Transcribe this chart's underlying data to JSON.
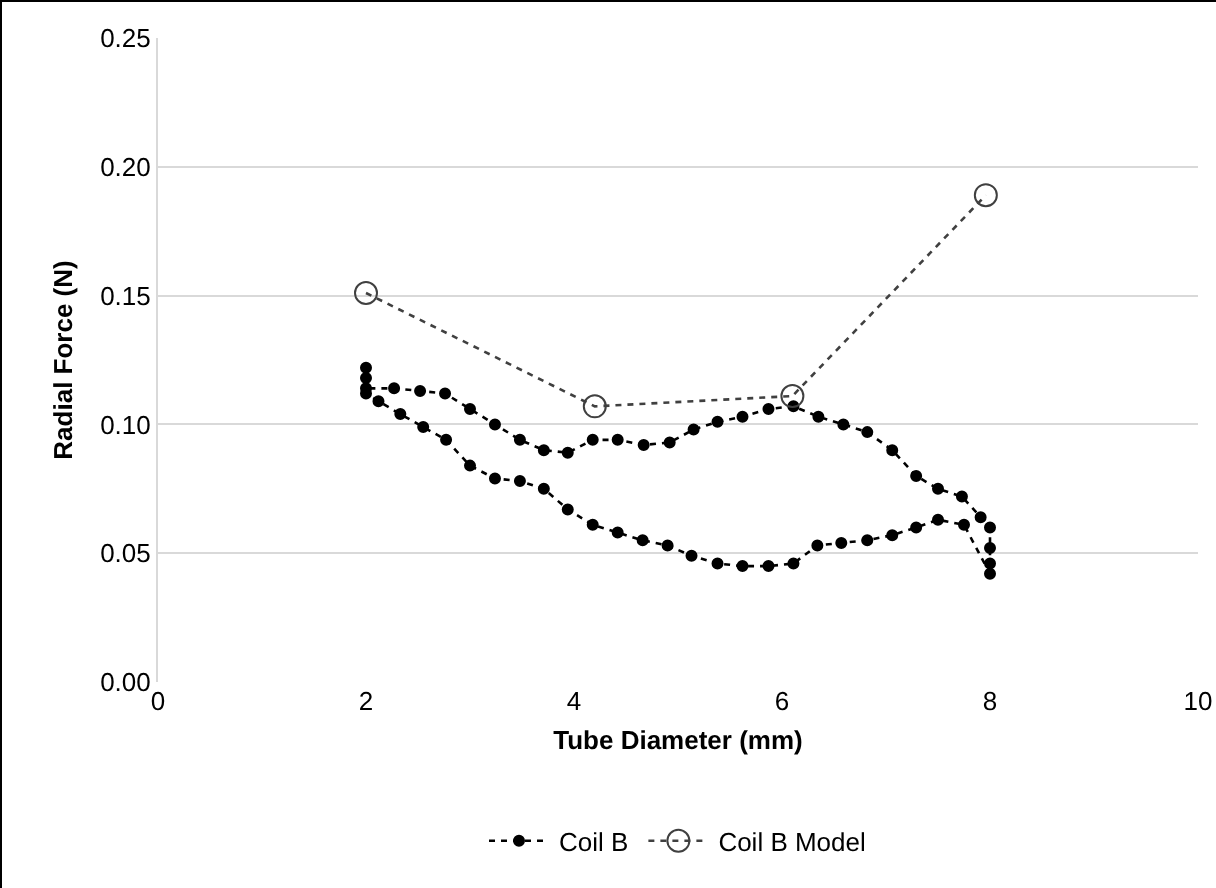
{
  "chart_data": {
    "type": "line",
    "xlabel": "Tube Diameter (mm)",
    "ylabel": "Radial Force (N)",
    "xlim": [
      0,
      10
    ],
    "xticks": [
      0,
      2,
      4,
      6,
      8,
      10
    ],
    "ylim": [
      0,
      0.25
    ],
    "yticks": [
      {
        "value": 0,
        "label": "0.00"
      },
      {
        "value": 0.05,
        "label": "0.05"
      },
      {
        "value": 0.1,
        "label": "0.10"
      },
      {
        "value": 0.15,
        "label": "0.15"
      },
      {
        "value": 0.2,
        "label": "0.20"
      },
      {
        "value": 0.25,
        "label": "0.25"
      }
    ],
    "grid": "y",
    "legend": "bottom",
    "line_style": "dotted",
    "series": [
      {
        "name": "Coil B",
        "color": "#000000",
        "marker": "circle",
        "x": [
          2.0,
          2.0,
          2.0,
          2.27,
          2.52,
          2.76,
          3.0,
          3.24,
          3.48,
          3.71,
          3.94,
          4.18,
          4.42,
          4.67,
          4.92,
          5.15,
          5.38,
          5.62,
          5.87,
          6.11,
          6.35,
          6.59,
          6.82,
          7.06,
          7.29,
          7.5,
          7.73,
          7.91,
          8.0,
          8.0,
          8.0,
          8.0,
          7.75,
          7.5,
          7.29,
          7.06,
          6.82,
          6.57,
          6.34,
          6.11,
          5.87,
          5.62,
          5.38,
          5.13,
          4.9,
          4.66,
          4.42,
          4.18,
          3.94,
          3.71,
          3.48,
          3.24,
          3.0,
          2.77,
          2.55,
          2.33,
          2.12,
          2.0
        ],
        "values": [
          0.122,
          0.118,
          0.114,
          0.114,
          0.113,
          0.112,
          0.106,
          0.1,
          0.094,
          0.09,
          0.089,
          0.094,
          0.094,
          0.092,
          0.093,
          0.098,
          0.101,
          0.103,
          0.106,
          0.107,
          0.103,
          0.1,
          0.097,
          0.09,
          0.08,
          0.075,
          0.072,
          0.064,
          0.06,
          0.052,
          0.046,
          0.042,
          0.061,
          0.063,
          0.06,
          0.057,
          0.055,
          0.054,
          0.053,
          0.046,
          0.045,
          0.045,
          0.046,
          0.049,
          0.053,
          0.055,
          0.058,
          0.061,
          0.067,
          0.075,
          0.078,
          0.079,
          0.084,
          0.094,
          0.099,
          0.104,
          0.109,
          0.112
        ]
      },
      {
        "name": "Coil B Model",
        "color": "#404040",
        "marker": "circle-open",
        "x": [
          2.0,
          4.2,
          6.1,
          7.96
        ],
        "values": [
          0.151,
          0.107,
          0.111,
          0.189
        ]
      }
    ]
  }
}
